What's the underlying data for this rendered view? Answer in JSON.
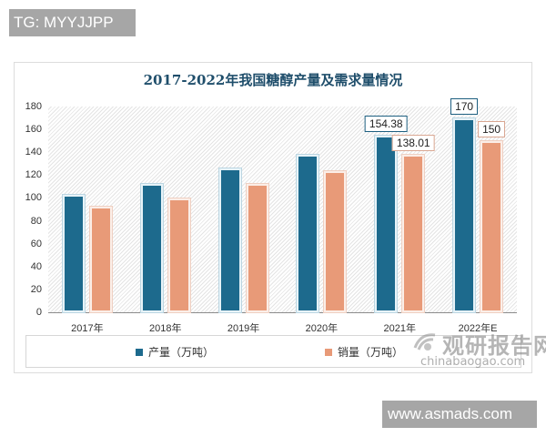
{
  "overlays": {
    "top_tag": "TG: MYYJJPP",
    "bottom_tag": "www.asmads.com"
  },
  "watermark": {
    "cn": "观研报告网",
    "en": "chinabaogao.com"
  },
  "colors": {
    "production": "#1d6a8d",
    "sales": "#e89a78",
    "title": "#1f4e6b"
  },
  "chart_data": {
    "type": "bar",
    "title": "2017-2022年我国糖醇产量及需求量情况",
    "xlabel": "",
    "ylabel": "",
    "ylim": [
      0,
      180
    ],
    "yticks": [
      0,
      20,
      40,
      60,
      80,
      100,
      120,
      140,
      160,
      180
    ],
    "categories": [
      "2017年",
      "2018年",
      "2019年",
      "2020年",
      "2021年",
      "2022年E"
    ],
    "series": [
      {
        "name": "产量（万吨）",
        "values": [
          103,
          112,
          126,
          137.6,
          154.38,
          170
        ]
      },
      {
        "name": "销量（万吨）",
        "values": [
          92.3,
          99.5,
          112,
          123.5,
          138.01,
          150
        ]
      }
    ],
    "data_labels": [
      {
        "series": 0,
        "index": 4,
        "text": "154.38"
      },
      {
        "series": 1,
        "index": 4,
        "text": "138.01"
      },
      {
        "series": 0,
        "index": 5,
        "text": "170"
      },
      {
        "series": 1,
        "index": 5,
        "text": "150"
      }
    ],
    "grid": false,
    "legend_position": "bottom",
    "background": "diagonal-hatch"
  }
}
